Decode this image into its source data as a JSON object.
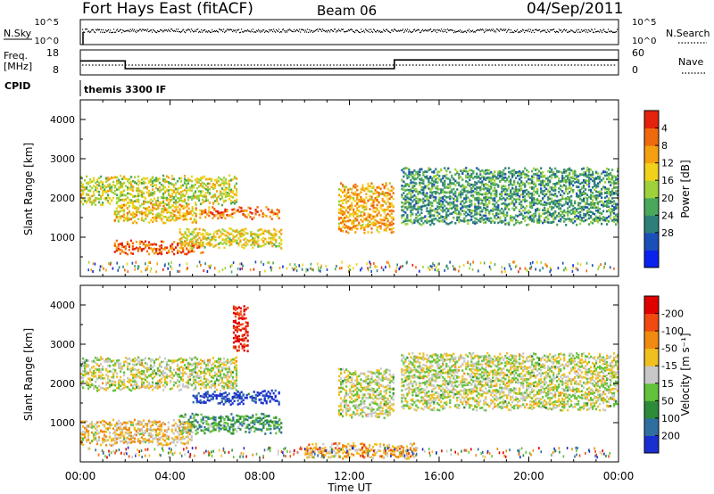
{
  "header": {
    "station": "Fort Hays East (fitACF)",
    "beam": "Beam 06",
    "date": "04/Sep/2011"
  },
  "top_panels": {
    "nsky_label": "N.Sky",
    "nsky_ticks": [
      "10^5",
      "10^0"
    ],
    "nsearch_label": "N.Search",
    "nsearch_ticks": [
      "10^5",
      "10^0"
    ],
    "freq_label": "Freq.",
    "freq_unit": "[MHz]",
    "freq_ticks": [
      "18",
      "8"
    ],
    "nave_label": "Nave",
    "nave_ticks": [
      "60",
      "0"
    ],
    "cpid_label": "CPID",
    "cpid_value": "themis 3300 IF"
  },
  "chart_data": [
    {
      "type": "line",
      "name": "frequency",
      "x": [
        0,
        2,
        2,
        14,
        14,
        24
      ],
      "y": [
        13.6,
        13.6,
        10.5,
        10.5,
        14.0,
        14.0
      ],
      "ylim": [
        8,
        18
      ],
      "xlim": [
        0,
        24
      ]
    },
    {
      "type": "heatmap",
      "ylabel": "Slant Range [km]",
      "xlabel": "",
      "xlim": [
        0,
        24
      ],
      "ylim": [
        0,
        4500
      ],
      "yticks": [
        "1000",
        "2000",
        "3000",
        "4000"
      ],
      "colorbar": {
        "label": "Power [dB]",
        "ticks": [
          "4",
          "8",
          "12",
          "16",
          "20",
          "24",
          "28"
        ],
        "colors": [
          "#0a22ee",
          "#1a4fb8",
          "#2d7f7a",
          "#4aa85a",
          "#9fd23a",
          "#f0d21a",
          "#f5a010",
          "#ef6a0c",
          "#e4230d"
        ]
      },
      "regions": [
        {
          "t0": 0.0,
          "t1": 7.0,
          "r0": 1900,
          "r1": 2600,
          "level": 0.55
        },
        {
          "t0": 1.5,
          "t1": 5.2,
          "r0": 1450,
          "r1": 1900,
          "level": 0.65
        },
        {
          "t0": 1.5,
          "t1": 5.5,
          "r0": 650,
          "r1": 950,
          "level": 0.85
        },
        {
          "t0": 4.4,
          "t1": 9.0,
          "r0": 800,
          "r1": 1250,
          "level": 0.6
        },
        {
          "t0": 5.3,
          "t1": 8.9,
          "r0": 1550,
          "r1": 1800,
          "level": 0.8
        },
        {
          "t0": 11.5,
          "t1": 14.0,
          "r0": 1200,
          "r1": 2400,
          "level": 0.7
        },
        {
          "t0": 14.3,
          "t1": 24.0,
          "r0": 1400,
          "r1": 2800,
          "level": 0.35
        }
      ]
    },
    {
      "type": "heatmap",
      "ylabel": "Slant Range [km]",
      "xlabel": "Time UT",
      "xlim": [
        0,
        24
      ],
      "ylim": [
        0,
        4500
      ],
      "yticks": [
        "1000",
        "2000",
        "3000",
        "4000"
      ],
      "xticks": [
        "00:00",
        "04:00",
        "08:00",
        "12:00",
        "16:00",
        "20:00",
        "00:00"
      ],
      "colorbar": {
        "label": "Velocity [m s⁻¹]",
        "ticks": [
          "200",
          "100",
          "50",
          "15",
          "-15",
          "-50",
          "-100",
          "-200"
        ],
        "colors": [
          "#1a2fd0",
          "#2f6fa0",
          "#2e8b3a",
          "#63c23b",
          "#c8c8c8",
          "#f0c020",
          "#f08a10",
          "#f04a10",
          "#e00000"
        ]
      },
      "regions": [
        {
          "t0": 0.0,
          "t1": 7.0,
          "r0": 1900,
          "r1": 2700,
          "level": 0.5
        },
        {
          "t0": 5.0,
          "t1": 8.9,
          "r0": 1550,
          "r1": 1850,
          "level": 0.05
        },
        {
          "t0": 4.4,
          "t1": 9.0,
          "r0": 800,
          "r1": 1250,
          "level": 0.3
        },
        {
          "t0": 0.0,
          "t1": 5.0,
          "r0": 500,
          "r1": 1100,
          "level": 0.6
        },
        {
          "t0": 6.8,
          "t1": 7.5,
          "r0": 2900,
          "r1": 4000,
          "level": 0.95
        },
        {
          "t0": 10.0,
          "t1": 15.0,
          "r0": 150,
          "r1": 500,
          "level": 0.65
        },
        {
          "t0": 11.5,
          "t1": 14.0,
          "r0": 1200,
          "r1": 2400,
          "level": 0.5
        },
        {
          "t0": 14.3,
          "t1": 24.0,
          "r0": 1400,
          "r1": 2800,
          "level": 0.5
        }
      ]
    }
  ]
}
